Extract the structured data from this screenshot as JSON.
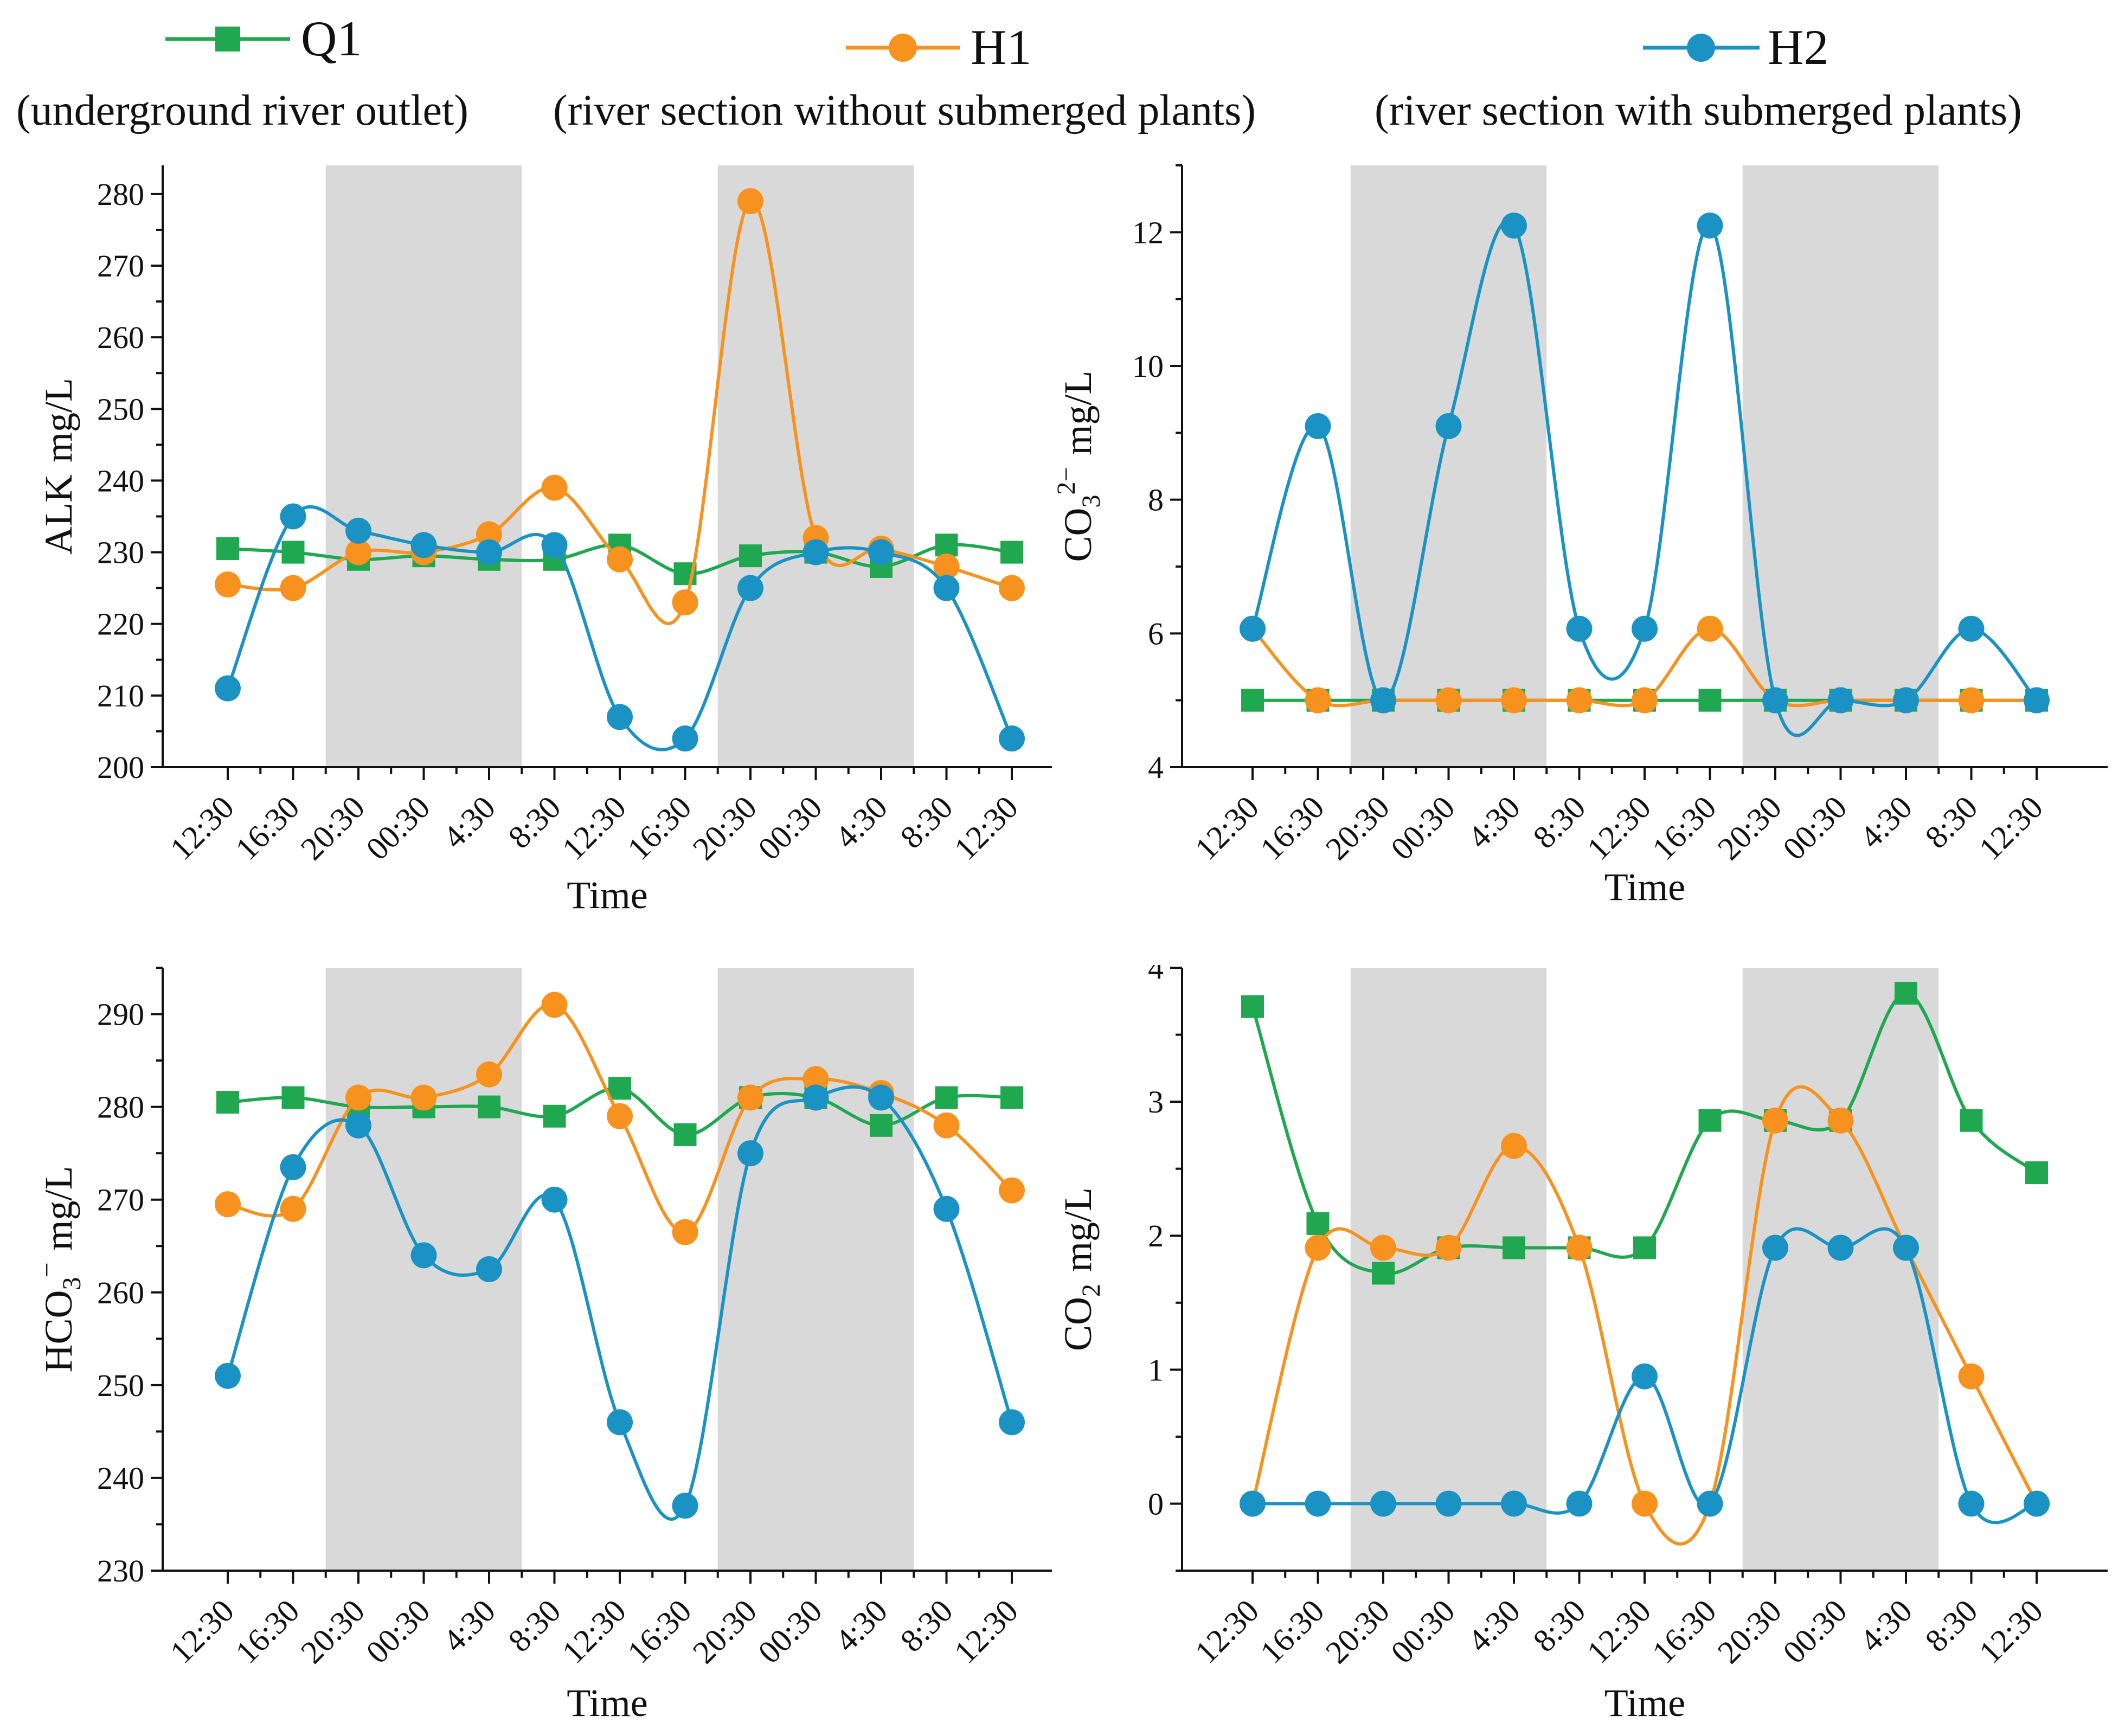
{
  "legend": {
    "entries": [
      {
        "key": "Q1",
        "name": "Q1",
        "description": "(underground river outlet)",
        "color": "#1fa84f",
        "marker": "square"
      },
      {
        "key": "H1",
        "name": "H1",
        "description": "(river section without submerged plants)",
        "color": "#f7921e",
        "marker": "circle"
      },
      {
        "key": "H2",
        "name": "H2",
        "description": "(river section with submerged plants)",
        "color": "#1a93c4",
        "marker": "circle"
      }
    ]
  },
  "colors": {
    "shade": "#d9d9d9",
    "axis": "#111111"
  },
  "chart_data": [
    {
      "id": "alk",
      "type": "line",
      "xlabel": "Time",
      "ylabel": {
        "main": "ALK",
        "unit": "mg/L"
      },
      "categories": [
        "12:30",
        "16:30",
        "20:30",
        "00:30",
        "4:30",
        "8:30",
        "12:30",
        "16:30",
        "20:30",
        "00:30",
        "4:30",
        "8:30",
        "12:30"
      ],
      "ylim": [
        200,
        284
      ],
      "yticks": [
        200,
        210,
        220,
        230,
        240,
        250,
        260,
        270,
        280
      ],
      "shaded_x_ranges": [
        [
          1.5,
          4.5
        ],
        [
          7.5,
          10.5
        ]
      ],
      "series": [
        {
          "name": "Q1",
          "values": [
            230.5,
            230,
            229,
            229.5,
            229,
            229,
            231,
            227,
            229.5,
            230,
            228,
            231,
            230
          ]
        },
        {
          "name": "H1",
          "values": [
            225.5,
            225,
            230,
            230,
            232.5,
            239,
            229,
            223,
            279,
            232,
            230.5,
            228,
            225
          ]
        },
        {
          "name": "H2",
          "values": [
            211,
            235,
            233,
            231,
            230,
            231,
            207,
            204,
            225,
            230,
            230,
            225,
            204
          ]
        }
      ]
    },
    {
      "id": "co3",
      "type": "line",
      "xlabel": "Time",
      "ylabel": {
        "main": "CO",
        "sub": "3",
        "sup": "2−",
        "unit": "mg/L"
      },
      "categories": [
        "12:30",
        "16:30",
        "20:30",
        "00:30",
        "4:30",
        "8:30",
        "12:30",
        "16:30",
        "20:30",
        "00:30",
        "4:30",
        "8:30",
        "12:30"
      ],
      "ylim": [
        4,
        13
      ],
      "yticks": [
        4,
        6,
        8,
        10,
        12
      ],
      "shaded_x_ranges": [
        [
          1.5,
          4.5
        ],
        [
          7.5,
          10.5
        ]
      ],
      "series": [
        {
          "name": "Q1",
          "values": [
            5,
            5,
            5,
            5,
            5,
            5,
            5,
            5,
            5,
            5,
            5,
            5,
            5
          ]
        },
        {
          "name": "H1",
          "values": [
            6.07,
            5,
            5,
            5,
            5,
            5,
            5,
            6.07,
            5,
            5,
            5,
            5,
            5
          ]
        },
        {
          "name": "H2",
          "values": [
            6.07,
            9.1,
            5,
            9.1,
            12.1,
            6.07,
            6.07,
            12.1,
            5,
            5,
            5,
            6.07,
            5
          ]
        }
      ]
    },
    {
      "id": "hco3",
      "type": "line",
      "xlabel": "Time",
      "ylabel": {
        "main": "HCO",
        "sub": "3",
        "sup": "−",
        "unit": "mg/L"
      },
      "categories": [
        "12:30",
        "16:30",
        "20:30",
        "00:30",
        "4:30",
        "8:30",
        "12:30",
        "16:30",
        "20:30",
        "00:30",
        "4:30",
        "8:30",
        "12:30"
      ],
      "ylim": [
        230,
        295
      ],
      "yticks": [
        230,
        240,
        250,
        260,
        270,
        280,
        290
      ],
      "shaded_x_ranges": [
        [
          1.5,
          4.5
        ],
        [
          7.5,
          10.5
        ]
      ],
      "series": [
        {
          "name": "Q1",
          "values": [
            280.5,
            281,
            280,
            280,
            280,
            279,
            282,
            277,
            281,
            281,
            278,
            281,
            281
          ]
        },
        {
          "name": "H1",
          "values": [
            269.5,
            269,
            281,
            281,
            283.5,
            291,
            279,
            266.5,
            281,
            283,
            281.5,
            278,
            271
          ]
        },
        {
          "name": "H2",
          "values": [
            251,
            273.5,
            278,
            264,
            262.5,
            270,
            246,
            237,
            275,
            281,
            281,
            269,
            246
          ]
        }
      ]
    },
    {
      "id": "co2",
      "type": "line",
      "xlabel": "Time",
      "ylabel": {
        "main": "CO",
        "sub": "2",
        "unit": "mg/L"
      },
      "categories": [
        "12:30",
        "16:30",
        "20:30",
        "00:30",
        "4:30",
        "8:30",
        "12:30",
        "16:30",
        "20:30",
        "00:30",
        "4:30",
        "8:30",
        "12:30"
      ],
      "ylim": [
        -0.5,
        4
      ],
      "yticks": [
        0,
        1,
        2,
        3,
        4
      ],
      "shaded_x_ranges": [
        [
          1.5,
          4.5
        ],
        [
          7.5,
          10.5
        ]
      ],
      "series": [
        {
          "name": "Q1",
          "values": [
            3.71,
            2.09,
            1.72,
            1.91,
            1.91,
            1.91,
            1.91,
            2.86,
            2.86,
            2.86,
            3.81,
            2.86,
            2.47
          ]
        },
        {
          "name": "H1",
          "values": [
            0,
            1.91,
            1.91,
            1.91,
            2.67,
            1.91,
            0,
            0,
            2.86,
            2.86,
            1.91,
            0.95,
            0
          ]
        },
        {
          "name": "H2",
          "values": [
            0,
            0,
            0,
            0,
            0,
            0,
            0.95,
            0,
            1.91,
            1.91,
            1.91,
            0,
            0
          ]
        }
      ]
    }
  ]
}
